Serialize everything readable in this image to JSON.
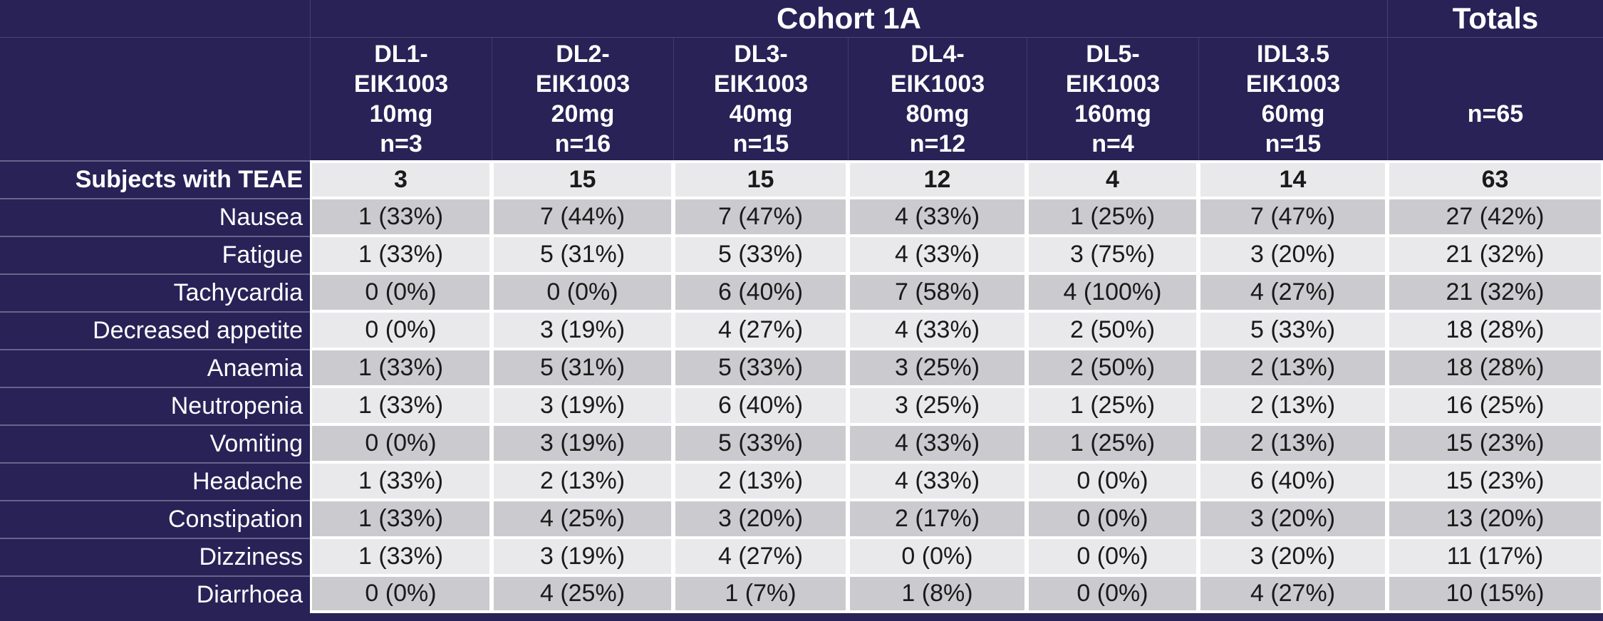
{
  "chart_data": {
    "type": "table",
    "title": "Cohort 1A",
    "totals_header": "Totals",
    "group_columns": [
      "DL1-\nEIK1003\n10mg\nn=3",
      "DL2-\nEIK1003\n20mg\nn=16",
      "DL3-\nEIK1003\n40mg\nn=15",
      "DL4-\nEIK1003\n80mg\nn=12",
      "DL5-\nEIK1003\n160mg\nn=4",
      "IDL3.5\nEIK1003\n60mg\nn=15"
    ],
    "totals_column_header": "n=65",
    "rows": [
      {
        "label": "Subjects with TEAE",
        "bold": true,
        "values": [
          "3",
          "15",
          "15",
          "12",
          "4",
          "14",
          "63"
        ]
      },
      {
        "label": "Nausea",
        "bold": false,
        "values": [
          "1 (33%)",
          "7 (44%)",
          "7 (47%)",
          "4 (33%)",
          "1 (25%)",
          "7 (47%)",
          "27 (42%)"
        ]
      },
      {
        "label": "Fatigue",
        "bold": false,
        "values": [
          "1 (33%)",
          "5 (31%)",
          "5 (33%)",
          "4 (33%)",
          "3 (75%)",
          "3 (20%)",
          "21 (32%)"
        ]
      },
      {
        "label": "Tachycardia",
        "bold": false,
        "values": [
          "0 (0%)",
          "0 (0%)",
          "6 (40%)",
          "7 (58%)",
          "4 (100%)",
          "4 (27%)",
          "21 (32%)"
        ]
      },
      {
        "label": "Decreased appetite",
        "bold": false,
        "values": [
          "0 (0%)",
          "3 (19%)",
          "4 (27%)",
          "4 (33%)",
          "2 (50%)",
          "5 (33%)",
          "18 (28%)"
        ]
      },
      {
        "label": "Anaemia",
        "bold": false,
        "values": [
          "1 (33%)",
          "5 (31%)",
          "5 (33%)",
          "3 (25%)",
          "2 (50%)",
          "2 (13%)",
          "18 (28%)"
        ]
      },
      {
        "label": "Neutropenia",
        "bold": false,
        "values": [
          "1 (33%)",
          "3 (19%)",
          "6 (40%)",
          "3 (25%)",
          "1 (25%)",
          "2 (13%)",
          "16 (25%)"
        ]
      },
      {
        "label": "Vomiting",
        "bold": false,
        "values": [
          "0 (0%)",
          "3 (19%)",
          "5 (33%)",
          "4 (33%)",
          "1 (25%)",
          "2 (13%)",
          "15 (23%)"
        ]
      },
      {
        "label": "Headache",
        "bold": false,
        "values": [
          "1 (33%)",
          "2 (13%)",
          "2 (13%)",
          "4 (33%)",
          "0 (0%)",
          "6 (40%)",
          "15 (23%)"
        ]
      },
      {
        "label": "Constipation",
        "bold": false,
        "values": [
          "1 (33%)",
          "4 (25%)",
          "3 (20%)",
          "2 (17%)",
          "0 (0%)",
          "3 (20%)",
          "13 (20%)"
        ]
      },
      {
        "label": "Dizziness",
        "bold": false,
        "values": [
          "1 (33%)",
          "3 (19%)",
          "4 (27%)",
          "0 (0%)",
          "0 (0%)",
          "3 (20%)",
          "11 (17%)"
        ]
      },
      {
        "label": "Diarrhoea",
        "bold": false,
        "values": [
          "0 (0%)",
          "4 (25%)",
          "1 (7%)",
          "1 (8%)",
          "0 (0%)",
          "4 (27%)",
          "10 (15%)"
        ]
      }
    ],
    "layout_hints": {
      "stripe_order": "light-first",
      "grid": "white separators between data cells"
    }
  },
  "colors": {
    "header_navy": "#282257",
    "row_light": "#e9e9eb",
    "row_dark": "#cbcbcf",
    "separator": "#ffffff",
    "header_text": "#ffffff",
    "body_text": "#1a1a1a"
  }
}
